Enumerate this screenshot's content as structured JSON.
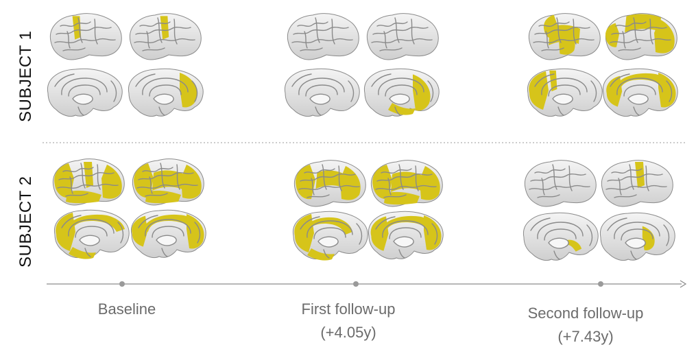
{
  "rows": [
    {
      "label": "SUBJECT 1"
    },
    {
      "label": "SUBJECT 2"
    }
  ],
  "timepoints": [
    {
      "label": "Baseline",
      "sublabel": ""
    },
    {
      "label": "First follow-up",
      "sublabel": "(+4.05y)"
    },
    {
      "label": "Second follow-up",
      "sublabel": "(+7.43y)"
    }
  ],
  "colors": {
    "highlight": "#d6c41a",
    "cortex": "#e9e9e9",
    "sulci": "#8a8a8a",
    "timeline": "#8c8c8c"
  },
  "views": [
    "left-lateral",
    "right-lateral",
    "left-medial",
    "right-medial"
  ],
  "icons": [
    "brain-surface-icon",
    "timeline-arrow-icon"
  ]
}
